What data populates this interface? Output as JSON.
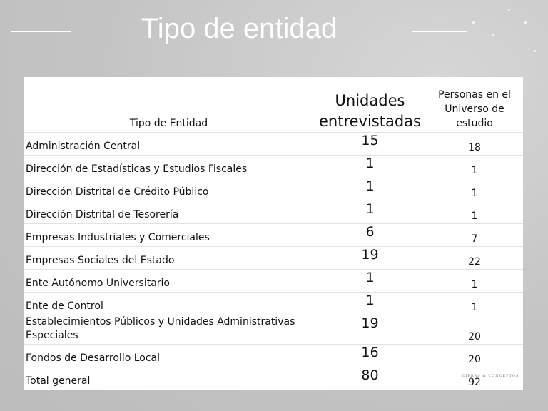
{
  "header": {
    "title": "Tipo de entidad"
  },
  "table": {
    "columns": [
      "Tipo de Entidad",
      "Unidades entrevistadas",
      "Personas en el Universo de estudio"
    ],
    "rows": [
      [
        "Administración Central",
        15,
        18
      ],
      [
        "Dirección de Estadísticas y Estudios Fiscales",
        1,
        1
      ],
      [
        "Dirección Distrital de Crédito Público",
        1,
        1
      ],
      [
        "Dirección Distrital de Tesorería",
        1,
        1
      ],
      [
        "Empresas Industriales y Comerciales",
        6,
        7
      ],
      [
        "Empresas Sociales del Estado",
        19,
        22
      ],
      [
        "Ente Autónomo Universitario",
        1,
        1
      ],
      [
        "Ente de Control",
        1,
        1
      ],
      [
        "Establecimientos Públicos y Unidades Administrativas Especiales",
        19,
        20
      ],
      [
        "Fondos de Desarrollo Local",
        16,
        20
      ],
      [
        "Total general",
        80,
        92
      ]
    ]
  },
  "footer": {
    "logo": "CIFRAS & CONCEPTOS"
  }
}
